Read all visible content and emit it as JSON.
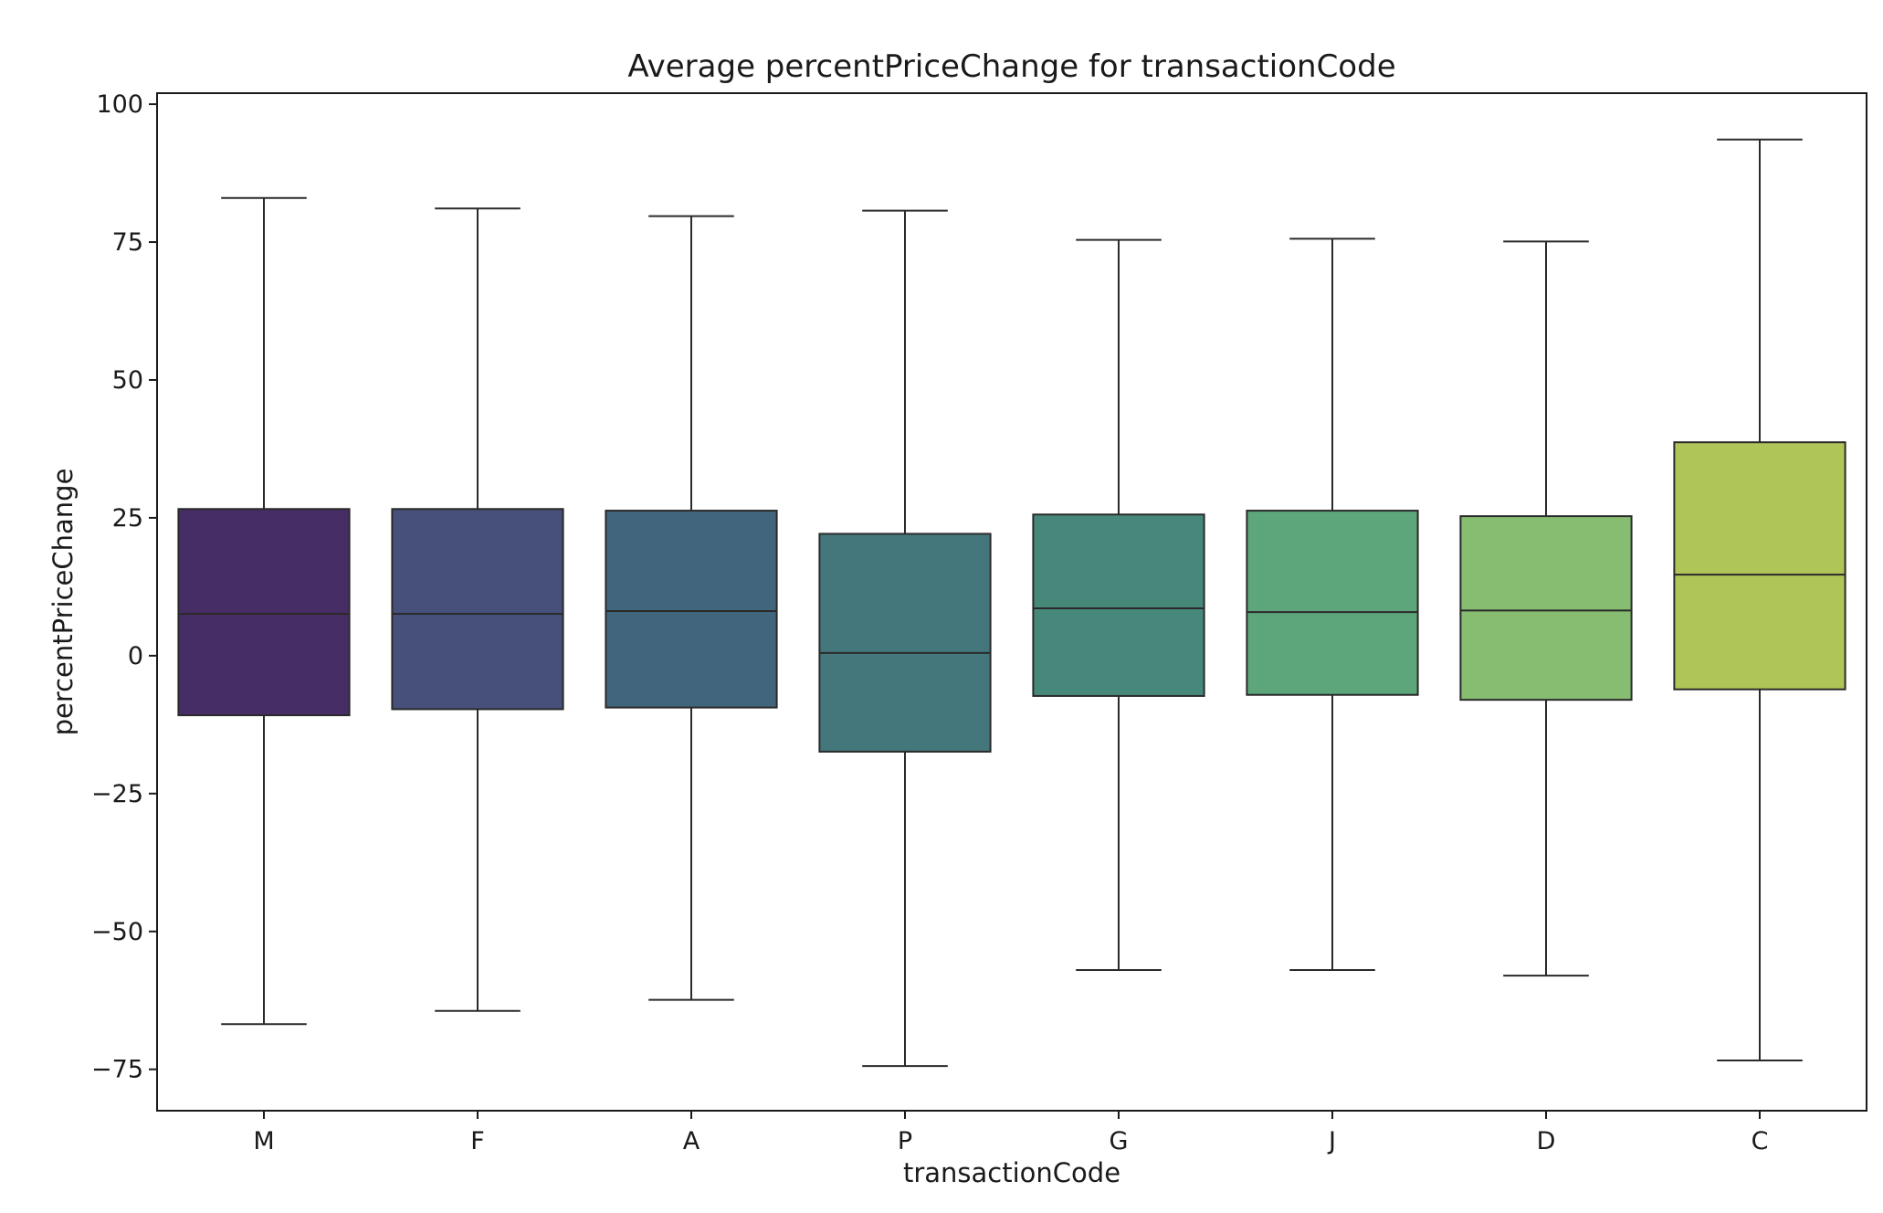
{
  "chart_data": {
    "type": "box",
    "title": "Average percentPriceChange for transactionCode",
    "xlabel": "transactionCode",
    "ylabel": "percentPriceChange",
    "ylim": [
      -82.5,
      102
    ],
    "yticks": [
      100,
      75,
      50,
      25,
      0,
      -25,
      -50,
      -75
    ],
    "ytick_labels": [
      "100",
      "75",
      "50",
      "25",
      "0",
      "−25",
      "−50",
      "−75"
    ],
    "grid": false,
    "legend": "none",
    "palette": "viridis",
    "categories": [
      "M",
      "F",
      "A",
      "P",
      "G",
      "J",
      "D",
      "C"
    ],
    "boxes": [
      {
        "category": "M",
        "whisker_low": -66.8,
        "q1": -10.8,
        "median": 7.6,
        "q3": 26.6,
        "whisker_high": 83.0,
        "color": "#472d66"
      },
      {
        "category": "F",
        "whisker_low": -64.4,
        "q1": -9.7,
        "median": 7.6,
        "q3": 26.6,
        "whisker_high": 81.1,
        "color": "#46507a"
      },
      {
        "category": "A",
        "whisker_low": -62.4,
        "q1": -9.4,
        "median": 8.1,
        "q3": 26.3,
        "whisker_high": 79.7,
        "color": "#42657e"
      },
      {
        "category": "P",
        "whisker_low": -74.4,
        "q1": -17.4,
        "median": 0.5,
        "q3": 22.1,
        "whisker_high": 80.7,
        "color": "#44777c"
      },
      {
        "category": "G",
        "whisker_low": -57.0,
        "q1": -7.3,
        "median": 8.6,
        "q3": 25.6,
        "whisker_high": 75.4,
        "color": "#46897b"
      },
      {
        "category": "J",
        "whisker_low": -57.0,
        "q1": -7.1,
        "median": 7.9,
        "q3": 26.3,
        "whisker_high": 75.6,
        "color": "#5da57a"
      },
      {
        "category": "D",
        "whisker_low": -58.0,
        "q1": -8.0,
        "median": 8.2,
        "q3": 25.3,
        "whisker_high": 75.1,
        "color": "#86bd70"
      },
      {
        "category": "C",
        "whisker_low": -73.4,
        "q1": -6.1,
        "median": 14.7,
        "q3": 38.7,
        "whisker_high": 93.6,
        "color": "#afc557"
      }
    ]
  }
}
